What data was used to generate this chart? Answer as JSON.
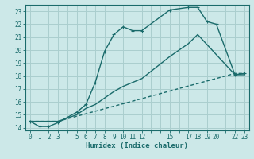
{
  "xlabel": "Humidex (Indice chaleur)",
  "bg_color": "#cce8e8",
  "grid_color": "#aacece",
  "line_color": "#1a6b6b",
  "line1_x": [
    0,
    1,
    2,
    3,
    5,
    6,
    7,
    8,
    9,
    10,
    11,
    12,
    15,
    17,
    18,
    19,
    20,
    22,
    23
  ],
  "line1_y": [
    14.5,
    14.1,
    14.1,
    14.4,
    15.2,
    15.8,
    17.5,
    19.9,
    21.2,
    21.8,
    21.5,
    21.5,
    23.1,
    23.3,
    23.3,
    22.2,
    22.0,
    18.1,
    18.2
  ],
  "line2_x": [
    0,
    3,
    5,
    6,
    7,
    8,
    9,
    10,
    11,
    12,
    15,
    17,
    18,
    22,
    23
  ],
  "line2_y": [
    14.5,
    14.5,
    15.0,
    15.5,
    15.8,
    16.3,
    16.8,
    17.2,
    17.5,
    17.8,
    19.5,
    20.5,
    21.2,
    18.1,
    18.1
  ],
  "line3_x": [
    0,
    3,
    22,
    23
  ],
  "line3_y": [
    14.5,
    14.5,
    18.2,
    18.2
  ],
  "xlim": [
    -0.5,
    23.5
  ],
  "ylim": [
    13.8,
    23.5
  ],
  "xticks_all": [
    0,
    1,
    2,
    3,
    4,
    5,
    6,
    7,
    8,
    9,
    10,
    11,
    12,
    13,
    14,
    15,
    16,
    17,
    18,
    19,
    20,
    21,
    22,
    23
  ],
  "xtick_labels_show": [
    0,
    1,
    2,
    3,
    5,
    6,
    7,
    8,
    9,
    10,
    11,
    12,
    15,
    17,
    18,
    19,
    20,
    22,
    23
  ],
  "yticks": [
    14,
    15,
    16,
    17,
    18,
    19,
    20,
    21,
    22,
    23
  ]
}
